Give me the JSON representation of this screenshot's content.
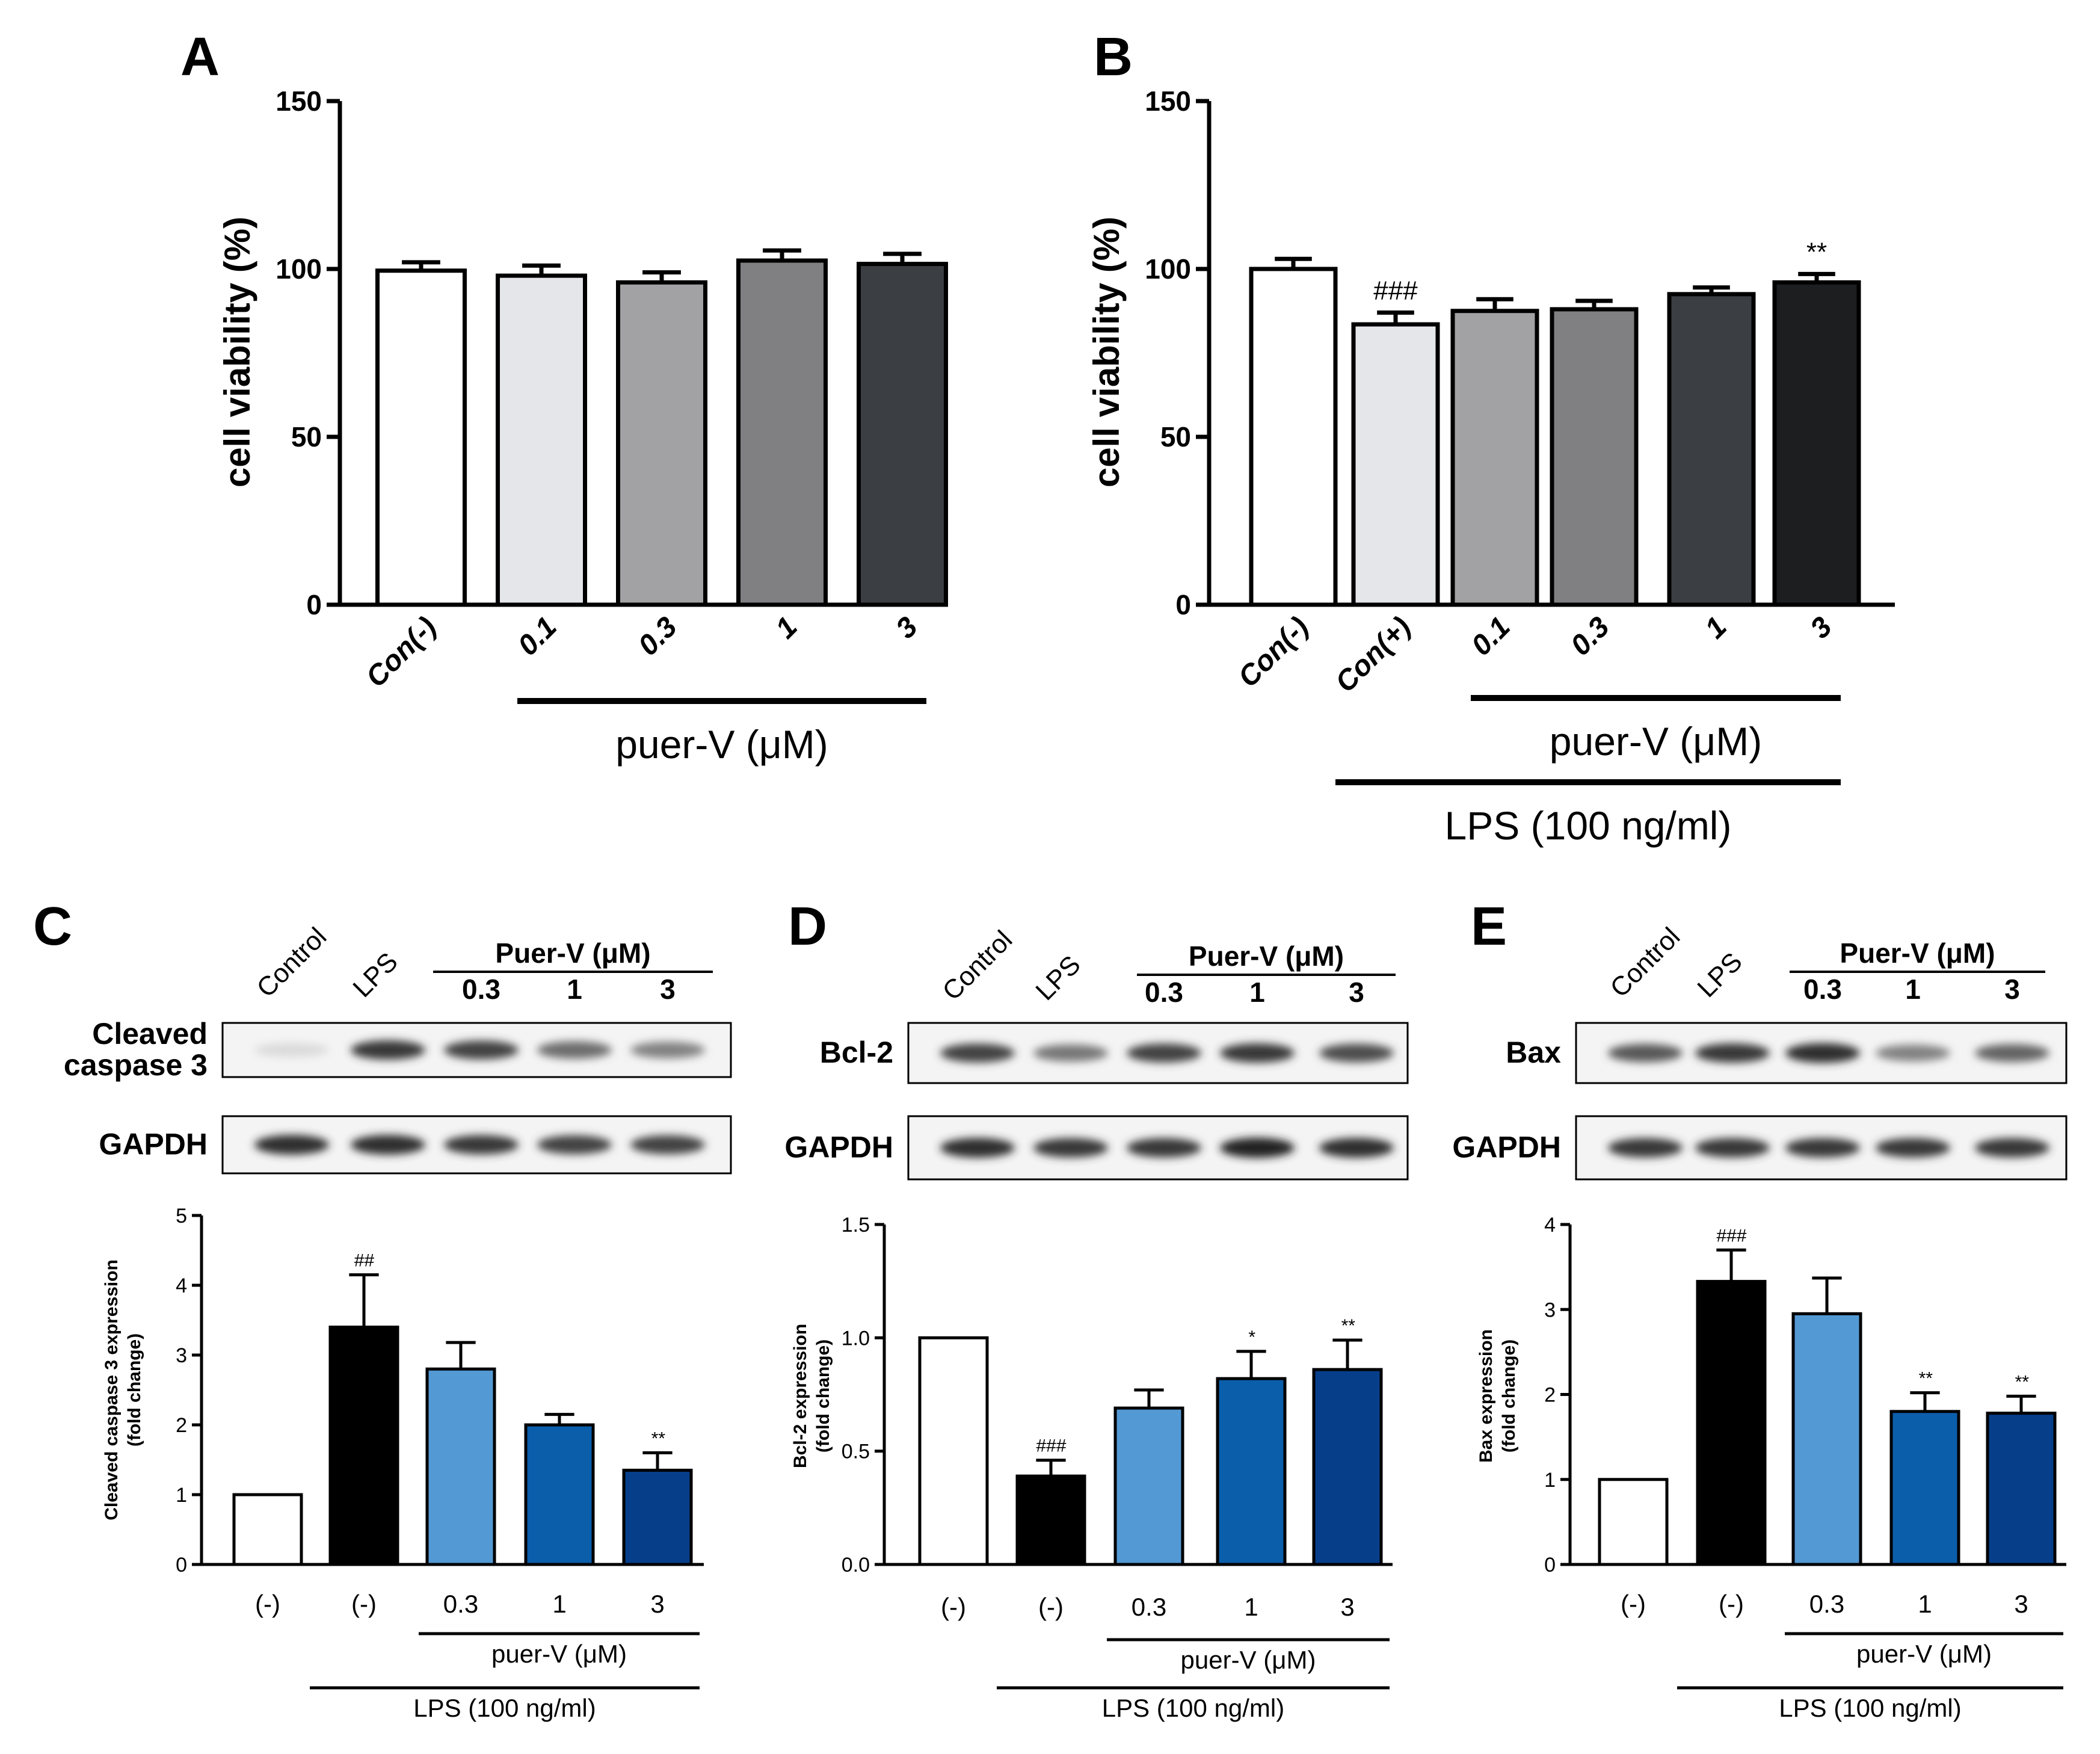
{
  "colors": {
    "A": [
      "#ffffff",
      "#e5e6ea",
      "#a2a2a5",
      "#808083",
      "#3b3e42"
    ],
    "B": [
      "#ffffff",
      "#e5e6ea",
      "#a2a2a5",
      "#808083",
      "#3b3e42",
      "#1d1e20"
    ],
    "blue": [
      "#ffffff",
      "#000000",
      "#5399d4",
      "#0b5eaa",
      "#063e8a"
    ]
  },
  "chart_data": [
    {
      "panel": "A",
      "type": "bar",
      "ylabel": "cell viability (%)",
      "ylim": [
        0,
        150
      ],
      "yticks": [
        0,
        50,
        100,
        150
      ],
      "categories": [
        "Con(-)",
        "0.1",
        "0.3",
        "1",
        "3"
      ],
      "values": [
        99.5,
        98,
        96,
        102.5,
        101.5
      ],
      "errors": [
        2.5,
        3,
        3,
        3,
        3
      ],
      "annotations": [
        "",
        "",
        "",
        "",
        ""
      ],
      "group_labels": [
        {
          "text": "puer-V (μM)",
          "from": 1,
          "to": 4
        }
      ]
    },
    {
      "panel": "B",
      "type": "bar",
      "ylabel": "cell viability (%)",
      "ylim": [
        0,
        150
      ],
      "yticks": [
        0,
        50,
        100,
        150
      ],
      "categories": [
        "Con(-)",
        "Con(+)",
        "0.1",
        "0.3",
        "1",
        "3"
      ],
      "values": [
        100,
        83.5,
        87.5,
        88,
        92.5,
        96
      ],
      "errors": [
        3,
        3.5,
        3.5,
        2.5,
        2,
        2.5
      ],
      "annotations": [
        "",
        "###",
        "",
        "",
        "",
        "**"
      ],
      "group_labels": [
        {
          "text": "puer-V (μM)",
          "from": 2,
          "to": 5
        },
        {
          "text": "LPS (100 ng/ml)",
          "from": 1,
          "to": 5
        }
      ]
    },
    {
      "panel": "C",
      "type": "bar",
      "ylabel": [
        "Cleaved caspase 3 expression",
        "(fold change)"
      ],
      "ylim": [
        0,
        5
      ],
      "yticks": [
        0,
        1,
        2,
        3,
        4,
        5
      ],
      "categories": [
        "(-)",
        "(-)",
        "0.3",
        "1",
        "3"
      ],
      "values": [
        1,
        3.4,
        2.8,
        2.0,
        1.35
      ],
      "errors": [
        0,
        0.75,
        0.38,
        0.15,
        0.25
      ],
      "annotations": [
        "",
        "##",
        "",
        "",
        "**"
      ],
      "group_labels": [
        {
          "text": "puer-V (μM)",
          "from": 2,
          "to": 4
        },
        {
          "text": "LPS (100 ng/ml)",
          "from": 1,
          "to": 4
        }
      ]
    },
    {
      "panel": "D",
      "type": "bar",
      "ylabel": [
        "Bcl-2 expression",
        "(fold change)"
      ],
      "ylim": [
        0,
        1.5
      ],
      "yticks": [
        0.0,
        0.5,
        1.0,
        1.5
      ],
      "ytick_labels": [
        "0.0",
        "0.5",
        "1.0",
        "1.5"
      ],
      "categories": [
        "(-)",
        "(-)",
        "0.3",
        "1",
        "3"
      ],
      "values": [
        1.0,
        0.39,
        0.69,
        0.82,
        0.86
      ],
      "errors": [
        0,
        0.07,
        0.08,
        0.12,
        0.13
      ],
      "annotations": [
        "",
        "###",
        "",
        "*",
        "**"
      ],
      "group_labels": [
        {
          "text": "puer-V (μM)",
          "from": 2,
          "to": 4
        },
        {
          "text": "LPS (100 ng/ml)",
          "from": 1,
          "to": 4
        }
      ]
    },
    {
      "panel": "E",
      "type": "bar",
      "ylabel": [
        "Bax expression",
        "(fold change)"
      ],
      "ylim": [
        0,
        4
      ],
      "yticks": [
        0,
        1,
        2,
        3,
        4
      ],
      "categories": [
        "(-)",
        "(-)",
        "0.3",
        "1",
        "3"
      ],
      "values": [
        1.0,
        3.33,
        2.95,
        1.8,
        1.78
      ],
      "errors": [
        0,
        0.37,
        0.42,
        0.22,
        0.2
      ],
      "annotations": [
        "",
        "###",
        "",
        "**",
        "**"
      ],
      "group_labels": [
        {
          "text": "puer-V (μM)",
          "from": 2,
          "to": 4
        },
        {
          "text": "LPS (100 ng/ml)",
          "from": 1,
          "to": 4
        }
      ]
    }
  ],
  "westerns": {
    "C": {
      "lanes": [
        "Control",
        "LPS",
        "0.3",
        "1",
        "3"
      ],
      "group": "Puer-V (μM)",
      "rows": [
        [
          "Cleaved",
          "caspase 3"
        ],
        [
          "GAPDH"
        ]
      ],
      "intensity": [
        [
          0.08,
          0.85,
          0.8,
          0.6,
          0.5
        ],
        [
          0.9,
          0.9,
          0.85,
          0.8,
          0.8
        ]
      ]
    },
    "D": {
      "lanes": [
        "Control",
        "LPS",
        "0.3",
        "1",
        "3"
      ],
      "group": "Puer-V (μM)",
      "rows": [
        [
          "Bcl-2"
        ],
        [
          "GAPDH"
        ]
      ],
      "intensity": [
        [
          0.8,
          0.55,
          0.8,
          0.85,
          0.75
        ],
        [
          0.9,
          0.85,
          0.85,
          0.95,
          0.9
        ]
      ]
    },
    "E": {
      "lanes": [
        "Control",
        "LPS",
        "0.3",
        "1",
        "3"
      ],
      "group": "Puer-V (μM)",
      "rows": [
        [
          "Bax"
        ],
        [
          "GAPDH"
        ]
      ],
      "intensity": [
        [
          0.7,
          0.85,
          0.9,
          0.5,
          0.65
        ],
        [
          0.85,
          0.85,
          0.85,
          0.85,
          0.85
        ]
      ]
    }
  }
}
